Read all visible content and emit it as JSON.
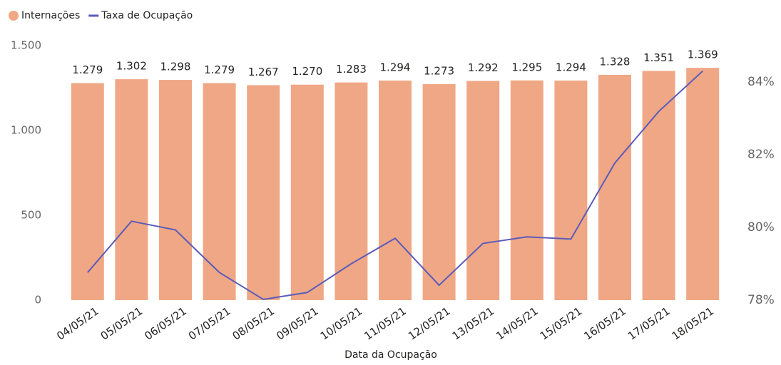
{
  "chart_data": {
    "type": "bar",
    "x_label": "Data da Ocupação",
    "categories": [
      "04/05/21",
      "05/05/21",
      "06/05/21",
      "07/05/21",
      "08/05/21",
      "09/05/21",
      "10/05/21",
      "11/05/21",
      "12/05/21",
      "13/05/21",
      "14/05/21",
      "15/05/21",
      "16/05/21",
      "17/05/21",
      "18/05/21"
    ],
    "series": [
      {
        "name": "Internações",
        "type": "bar",
        "color": "#f0a785",
        "values": [
          1279,
          1302,
          1298,
          1279,
          1267,
          1270,
          1283,
          1294,
          1273,
          1292,
          1295,
          1294,
          1328,
          1351,
          1369
        ],
        "value_labels": [
          "1.279",
          "1.302",
          "1.298",
          "1.279",
          "1.267",
          "1.270",
          "1.283",
          "1.294",
          "1.273",
          "1.292",
          "1.295",
          "1.294",
          "1.328",
          "1.351",
          "1.369"
        ]
      },
      {
        "name": "Taxa de Ocupação",
        "type": "line",
        "axis": "y2",
        "color": "#5a5cba",
        "values": [
          78.76,
          80.17,
          79.93,
          78.76,
          78.02,
          78.21,
          79.0,
          79.7,
          78.41,
          79.56,
          79.74,
          79.68,
          81.77,
          83.19,
          84.3
        ]
      }
    ],
    "ylim": [
      0,
      1500
    ],
    "yticks": [
      0,
      500,
      {
        "value": 1000,
        "label": "1.000"
      },
      {
        "value": 1500,
        "label": "1.500"
      }
    ],
    "y2lim": [
      78,
      85
    ],
    "y2ticks": [
      {
        "value": 78,
        "label": "78%"
      },
      {
        "value": 80,
        "label": "80%"
      },
      {
        "value": 82,
        "label": "82%"
      },
      {
        "value": 84,
        "label": "84%"
      }
    ],
    "legend": "top-left"
  }
}
